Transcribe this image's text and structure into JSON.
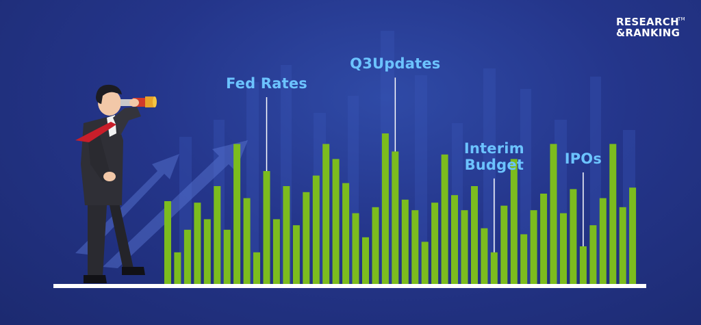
{
  "brand": {
    "line1": "RESEARCH",
    "line2": "&RANKING",
    "trademark": "TM"
  },
  "callouts": [
    {
      "label": "Fed Rates",
      "bar_index": 10
    },
    {
      "label": "Q3Updates",
      "bar_index": 23
    },
    {
      "label": "Interim\nBudget",
      "bar_index": 33
    },
    {
      "label": "IPOs",
      "bar_index": 42
    }
  ],
  "colors": {
    "bar": "#7cbc1e",
    "callout_text": "#6cc3ff",
    "ground": "#ffffff",
    "suit": "#2a2a30",
    "tie": "#c81e2a",
    "telescope": "#d23a2a"
  },
  "chart_data": {
    "type": "bar",
    "title": "",
    "xlabel": "",
    "ylabel": "",
    "ylim": [
      0,
      100
    ],
    "values": [
      55,
      21,
      36,
      54,
      43,
      65,
      36,
      93,
      57,
      21,
      75,
      43,
      65,
      39,
      61,
      72,
      93,
      83,
      67,
      47,
      31,
      51,
      100,
      88,
      56,
      49,
      28,
      54,
      86,
      59,
      49,
      65,
      37,
      21,
      52,
      83,
      33,
      49,
      60,
      93,
      47,
      63,
      25,
      39,
      57,
      93,
      51,
      64
    ]
  }
}
